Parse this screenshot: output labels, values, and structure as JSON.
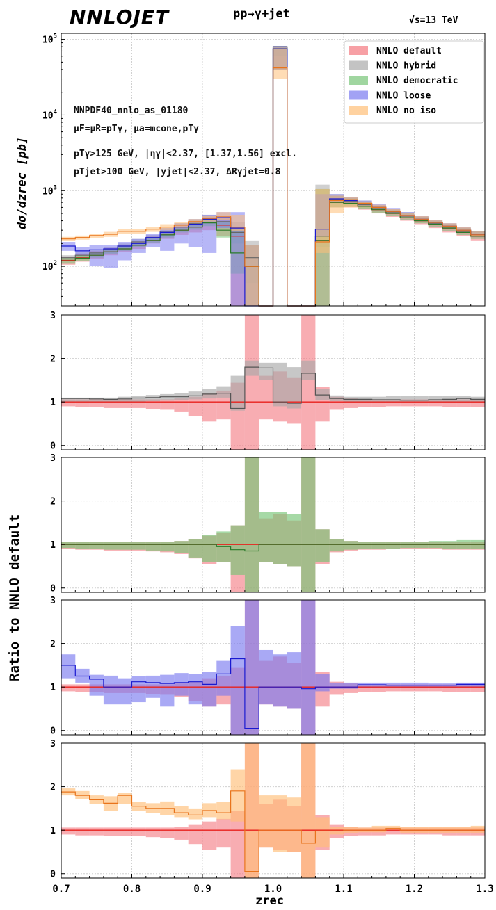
{
  "header": {
    "logo": "NNLOJET",
    "process": "pp→γ+jet",
    "energy_sqrt": "s",
    "energy_value": "=13 TeV"
  },
  "annotations": {
    "pdf": "NNPDF40_nnlo_as_01180",
    "scales_line": "μF=μR=pTγ, μa=mcone,pTγ",
    "cuts_photon": "pTγ>125 GeV, |ηγ|<2.37, [1.37,1.56] excl.",
    "cuts_jet": "pTjet>100 GeV, |yjet|<2.37, ΔRγjet=0.8"
  },
  "legend": [
    {
      "label": "NNLO default",
      "color": "#f4777f"
    },
    {
      "label": "NNLO hybrid",
      "color": "#a9a9a9"
    },
    {
      "label": "NNLO democratic",
      "color": "#77c477"
    },
    {
      "label": "NNLO loose",
      "color": "#7b7bf0"
    },
    {
      "label": "NNLO no iso",
      "color": "#ffbf78"
    }
  ],
  "axes": {
    "top_ylabel": "dσ/dzrec [pb]",
    "ratio_ylabel": "Ratio to NNLO default",
    "xlabel": "zrec",
    "xlim": [
      0.7,
      1.3
    ],
    "xticks": [
      "0.7",
      "0.8",
      "0.9",
      "1.0",
      "1.1",
      "1.2",
      "1.3"
    ],
    "top_ylim": [
      30,
      120000
    ],
    "top_yticks": [
      "10",
      "10",
      "10",
      "10"
    ],
    "top_yexps": [
      "2",
      "3",
      "4",
      "5"
    ],
    "ratio_ylim": [
      -0.1,
      3.0
    ],
    "ratio_yticks": [
      "0",
      "1",
      "2",
      "3"
    ],
    "grid": true,
    "log_scale_top": true
  },
  "chart_data": {
    "type": "line",
    "x_edges": [
      0.7,
      0.72,
      0.74,
      0.76,
      0.78,
      0.8,
      0.82,
      0.84,
      0.86,
      0.88,
      0.9,
      0.92,
      0.94,
      0.96,
      0.98,
      1.0,
      1.02,
      1.04,
      1.06,
      1.08,
      1.1,
      1.12,
      1.14,
      1.16,
      1.18,
      1.2,
      1.22,
      1.24,
      1.26,
      1.28,
      1.3
    ],
    "top": {
      "series": [
        {
          "name": "NNLO default",
          "color": "#f4777f",
          "line": "#e8201c",
          "values": [
            120,
            130,
            140,
            155,
            170,
            190,
            220,
            260,
            300,
            330,
            380,
            350,
            250,
            100,
            0,
            75000,
            0,
            0,
            220,
            700,
            680,
            620,
            560,
            500,
            440,
            400,
            360,
            320,
            280,
            250
          ],
          "lo": [
            105,
            115,
            125,
            140,
            155,
            170,
            200,
            230,
            260,
            280,
            300,
            250,
            30,
            30,
            0,
            40000,
            0,
            30,
            30,
            600,
            600,
            560,
            500,
            450,
            400,
            360,
            320,
            280,
            250,
            220
          ],
          "hi": [
            135,
            145,
            160,
            175,
            190,
            210,
            250,
            290,
            340,
            390,
            450,
            470,
            330,
            190,
            0,
            80000,
            0,
            0,
            1050,
            850,
            800,
            700,
            620,
            560,
            500,
            450,
            400,
            360,
            320,
            290
          ]
        },
        {
          "name": "NNLO hybrid",
          "color": "#a9a9a9",
          "line": "#666666",
          "values": [
            130,
            140,
            150,
            165,
            185,
            210,
            240,
            290,
            330,
            370,
            420,
            390,
            280,
            130,
            0,
            80000,
            0,
            0,
            250,
            760,
            720,
            650,
            580,
            520,
            460,
            410,
            370,
            330,
            290,
            260
          ],
          "lo": [
            120,
            128,
            138,
            150,
            170,
            190,
            220,
            260,
            300,
            330,
            370,
            330,
            200,
            60,
            0,
            60000,
            0,
            0,
            180,
            680,
            660,
            600,
            540,
            480,
            430,
            380,
            340,
            300,
            270,
            240
          ],
          "hi": [
            140,
            152,
            165,
            180,
            200,
            230,
            260,
            320,
            370,
            420,
            480,
            460,
            380,
            220,
            0,
            82000,
            0,
            0,
            1200,
            900,
            820,
            740,
            650,
            580,
            520,
            460,
            410,
            370,
            330,
            290
          ]
        },
        {
          "name": "NNLO democratic",
          "color": "#77c477",
          "line": "#2a7a2a",
          "values": [
            118,
            128,
            140,
            155,
            170,
            190,
            220,
            260,
            300,
            330,
            375,
            300,
            150,
            100,
            0,
            75000,
            0,
            0,
            220,
            700,
            680,
            620,
            560,
            500,
            440,
            400,
            360,
            320,
            280,
            250
          ],
          "lo": [
            108,
            118,
            130,
            145,
            160,
            178,
            205,
            240,
            280,
            305,
            340,
            240,
            80,
            30,
            0,
            40000,
            0,
            30,
            30,
            600,
            610,
            570,
            510,
            460,
            410,
            370,
            330,
            295,
            260,
            230
          ],
          "hi": [
            130,
            140,
            152,
            168,
            185,
            205,
            240,
            285,
            330,
            360,
            420,
            380,
            330,
            190,
            0,
            80000,
            0,
            0,
            1050,
            850,
            800,
            700,
            620,
            560,
            500,
            450,
            400,
            360,
            320,
            290
          ]
        },
        {
          "name": "NNLO loose",
          "color": "#7b7bf0",
          "line": "#1a1ad0",
          "values": [
            185,
            160,
            165,
            170,
            185,
            200,
            240,
            280,
            330,
            360,
            420,
            440,
            320,
            30,
            0,
            75000,
            0,
            0,
            310,
            780,
            740,
            670,
            600,
            530,
            470,
            420,
            380,
            340,
            300,
            260
          ],
          "lo": [
            160,
            140,
            100,
            95,
            120,
            150,
            180,
            160,
            200,
            180,
            150,
            320,
            30,
            30,
            0,
            40000,
            0,
            30,
            250,
            700,
            660,
            610,
            540,
            480,
            420,
            380,
            340,
            300,
            270,
            240
          ],
          "hi": [
            210,
            180,
            190,
            190,
            210,
            230,
            270,
            320,
            370,
            420,
            480,
            520,
            520,
            190,
            0,
            82000,
            0,
            0,
            900,
            900,
            830,
            740,
            660,
            590,
            520,
            460,
            410,
            370,
            330,
            290
          ]
        },
        {
          "name": "NNLO no iso",
          "color": "#ffbf78",
          "line": "#e8741c",
          "values": [
            230,
            240,
            255,
            265,
            290,
            290,
            310,
            330,
            350,
            390,
            430,
            460,
            330,
            100,
            0,
            42000,
            0,
            0,
            210,
            740,
            760,
            680,
            600,
            530,
            470,
            420,
            380,
            340,
            300,
            260
          ],
          "lo": [
            215,
            225,
            235,
            245,
            270,
            270,
            285,
            300,
            320,
            350,
            390,
            410,
            290,
            30,
            0,
            30000,
            0,
            30,
            150,
            500,
            600,
            600,
            540,
            480,
            420,
            380,
            340,
            300,
            270,
            240
          ],
          "hi": [
            245,
            255,
            270,
            285,
            310,
            310,
            330,
            360,
            380,
            420,
            470,
            520,
            480,
            190,
            0,
            78000,
            0,
            0,
            1050,
            860,
            820,
            720,
            650,
            580,
            510,
            460,
            410,
            370,
            330,
            290
          ]
        }
      ]
    },
    "ratio_default_band": {
      "lo": [
        0.9,
        0.88,
        0.88,
        0.86,
        0.86,
        0.86,
        0.84,
        0.82,
        0.78,
        0.68,
        0.55,
        0.6,
        -0.1,
        -0.1,
        0.6,
        0.55,
        0.5,
        -0.1,
        0.55,
        0.82,
        0.86,
        0.88,
        0.88,
        0.9,
        0.9,
        0.9,
        0.9,
        0.88,
        0.88,
        0.88
      ],
      "hi": [
        1.06,
        1.06,
        1.06,
        1.06,
        1.06,
        1.06,
        1.06,
        1.06,
        1.08,
        1.12,
        1.2,
        1.26,
        1.44,
        3.0,
        1.6,
        1.7,
        1.55,
        3.0,
        1.35,
        1.12,
        1.08,
        1.06,
        1.06,
        1.06,
        1.06,
        1.06,
        1.06,
        1.06,
        1.06,
        1.06
      ]
    },
    "ratios": [
      {
        "name": "NNLO hybrid",
        "color": "#a9a9a9",
        "line": "#555555",
        "values": [
          1.08,
          1.08,
          1.07,
          1.06,
          1.07,
          1.09,
          1.1,
          1.12,
          1.12,
          1.14,
          1.18,
          1.2,
          0.85,
          1.8,
          1.78,
          1.0,
          0.97,
          1.66,
          1.16,
          1.08,
          1.06,
          1.06,
          1.05,
          1.05,
          1.04,
          1.04,
          1.05,
          1.06,
          1.08,
          1.06
        ],
        "lo": [
          1.0,
          1.0,
          1.0,
          1.0,
          1.0,
          1.0,
          1.02,
          1.03,
          1.04,
          1.06,
          1.08,
          1.1,
          0.8,
          1.6,
          1.5,
          0.9,
          0.85,
          1.5,
          1.05,
          1.02,
          1.0,
          1.0,
          1.0,
          1.0,
          1.0,
          1.0,
          1.0,
          1.0,
          1.0,
          1.0
        ],
        "hi": [
          1.1,
          1.1,
          1.1,
          1.1,
          1.12,
          1.14,
          1.16,
          1.18,
          1.2,
          1.24,
          1.3,
          1.36,
          1.6,
          1.95,
          1.9,
          1.9,
          1.8,
          1.95,
          1.3,
          1.15,
          1.12,
          1.12,
          1.12,
          1.14,
          1.14,
          1.14,
          1.14,
          1.14,
          1.14,
          1.12
        ]
      },
      {
        "name": "NNLO democratic",
        "color": "#77c477",
        "line": "#2a7a2a",
        "values": [
          1.0,
          1.0,
          1.0,
          1.0,
          1.0,
          1.0,
          1.0,
          1.0,
          1.0,
          1.0,
          1.0,
          0.95,
          0.88,
          0.85,
          1.0,
          1.0,
          1.0,
          1.0,
          1.0,
          1.0,
          1.0,
          1.0,
          1.0,
          1.0,
          1.0,
          1.0,
          1.0,
          1.0,
          1.0,
          1.0
        ],
        "lo": [
          0.92,
          0.9,
          0.9,
          0.88,
          0.88,
          0.88,
          0.86,
          0.84,
          0.8,
          0.7,
          0.6,
          0.6,
          0.3,
          -0.1,
          0.6,
          0.55,
          0.5,
          -0.1,
          0.6,
          0.84,
          0.88,
          0.9,
          0.9,
          0.9,
          0.92,
          0.92,
          0.92,
          0.9,
          0.9,
          0.9
        ],
        "hi": [
          1.06,
          1.06,
          1.06,
          1.06,
          1.06,
          1.06,
          1.06,
          1.06,
          1.08,
          1.12,
          1.22,
          1.3,
          1.44,
          3.0,
          1.75,
          1.75,
          1.7,
          3.0,
          1.35,
          1.12,
          1.08,
          1.06,
          1.06,
          1.06,
          1.06,
          1.06,
          1.08,
          1.08,
          1.1,
          1.1
        ]
      },
      {
        "name": "NNLO loose",
        "color": "#7b7bf0",
        "line": "#1a1ad0",
        "values": [
          1.5,
          1.25,
          1.18,
          1.0,
          1.0,
          1.12,
          1.1,
          1.08,
          1.1,
          1.12,
          1.06,
          1.3,
          1.65,
          0.05,
          1.0,
          1.0,
          1.0,
          0.96,
          1.0,
          1.0,
          1.0,
          1.05,
          1.05,
          1.04,
          1.04,
          1.04,
          1.04,
          1.04,
          1.06,
          1.06
        ],
        "lo": [
          1.2,
          1.1,
          0.8,
          0.6,
          0.6,
          0.65,
          0.75,
          0.55,
          0.8,
          0.6,
          0.55,
          0.8,
          -0.1,
          -0.1,
          0.6,
          0.55,
          0.5,
          -0.1,
          0.9,
          0.96,
          0.96,
          0.98,
          0.98,
          0.98,
          0.98,
          0.98,
          0.98,
          0.98,
          1.0,
          1.0
        ],
        "hi": [
          1.75,
          1.42,
          1.28,
          1.26,
          1.2,
          1.25,
          1.26,
          1.28,
          1.32,
          1.3,
          1.35,
          1.6,
          2.4,
          3.0,
          1.85,
          1.75,
          1.8,
          3.0,
          1.3,
          1.1,
          1.1,
          1.1,
          1.1,
          1.1,
          1.1,
          1.1,
          1.08,
          1.08,
          1.1,
          1.1
        ]
      },
      {
        "name": "NNLO no iso",
        "color": "#ffbf78",
        "line": "#e8741c",
        "values": [
          1.88,
          1.8,
          1.7,
          1.62,
          1.8,
          1.55,
          1.5,
          1.5,
          1.4,
          1.35,
          1.45,
          1.4,
          1.9,
          0.05,
          1.0,
          1.0,
          1.0,
          0.7,
          0.98,
          0.98,
          1.0,
          1.0,
          1.0,
          1.04,
          1.0,
          1.0,
          1.0,
          1.0,
          1.0,
          1.0
        ],
        "lo": [
          1.8,
          1.72,
          1.6,
          1.45,
          1.6,
          1.45,
          1.4,
          1.35,
          1.3,
          1.25,
          1.3,
          1.25,
          1.2,
          -0.1,
          0.6,
          0.5,
          0.5,
          -0.1,
          0.6,
          0.9,
          0.94,
          0.95,
          0.95,
          0.98,
          0.94,
          0.94,
          0.94,
          0.94,
          0.94,
          0.94
        ],
        "hi": [
          1.96,
          1.9,
          1.8,
          1.78,
          1.85,
          1.65,
          1.62,
          1.66,
          1.55,
          1.5,
          1.62,
          1.65,
          2.4,
          3.0,
          1.8,
          1.8,
          1.75,
          3.0,
          1.3,
          1.08,
          1.08,
          1.06,
          1.1,
          1.1,
          1.08,
          1.08,
          1.08,
          1.08,
          1.08,
          1.1
        ]
      }
    ]
  }
}
